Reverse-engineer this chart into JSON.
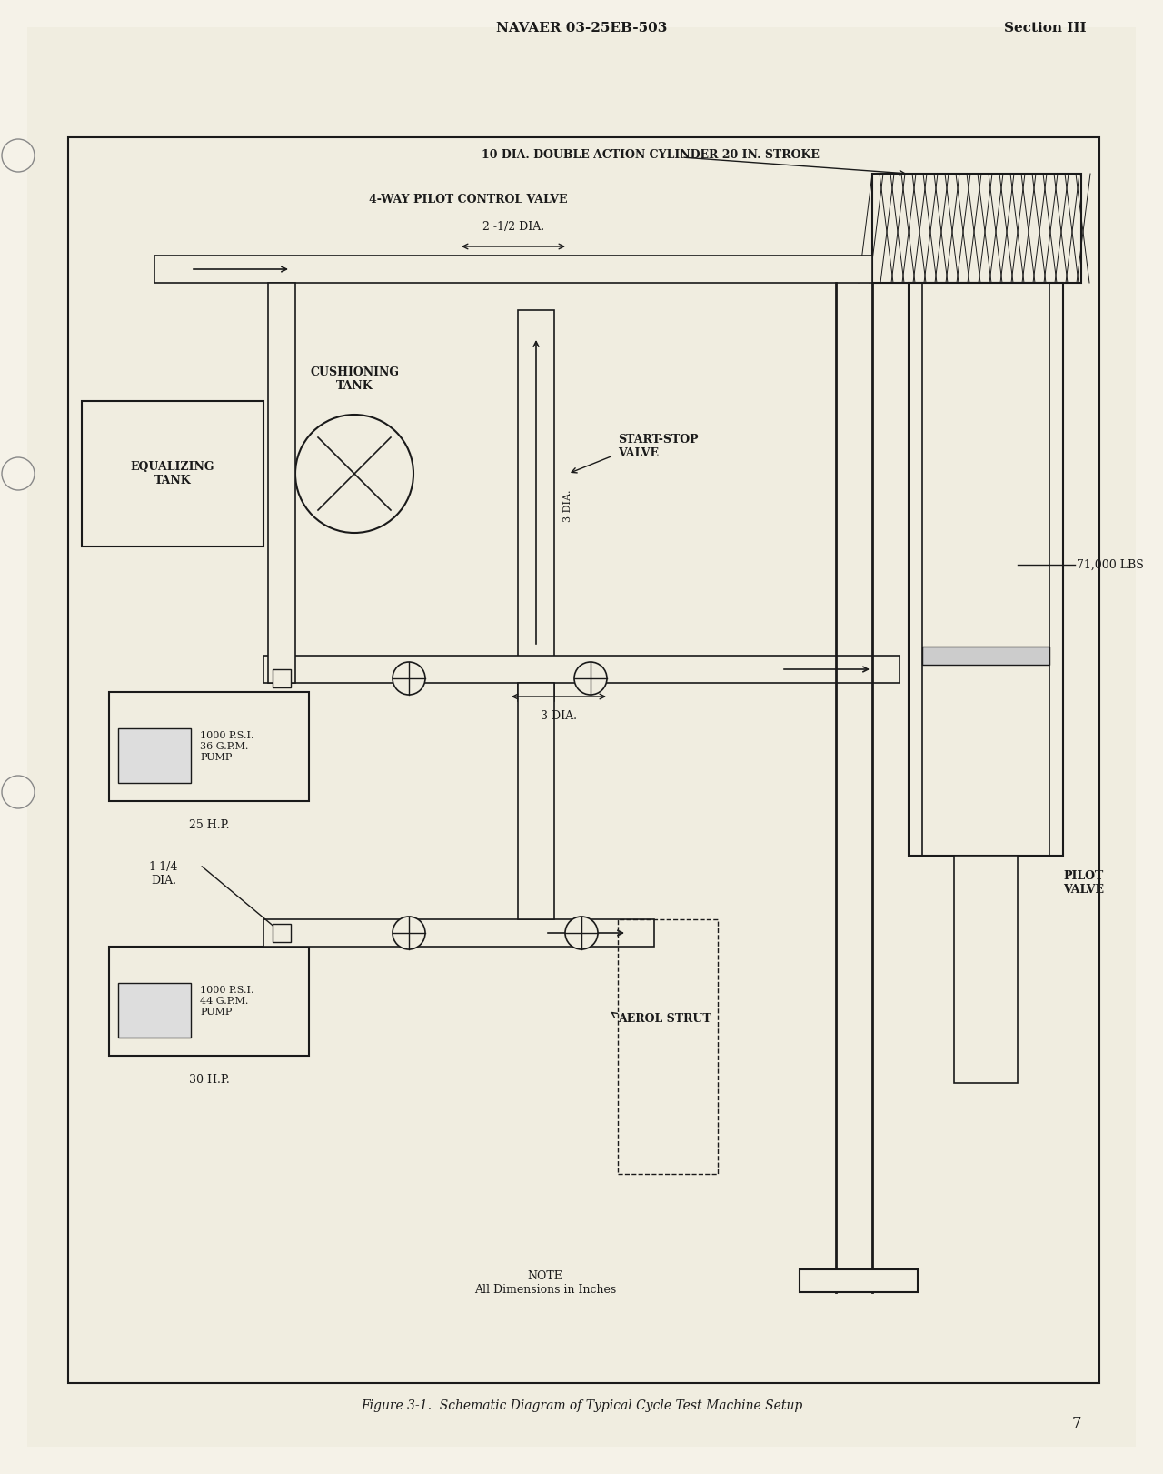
{
  "bg_color": "#f5f2e8",
  "page_color": "#f0ede0",
  "border_color": "#222222",
  "text_color": "#1a1a1a",
  "header_left": "NAVAER 03-25EB-503",
  "header_right": "Section III",
  "footer_caption": "Figure 3-1.  Schematic Diagram of Typical Cycle Test Machine Setup",
  "page_number": "7",
  "diagram_title_top": "10 DIA. DOUBLE ACTION CYLINDER 20 IN. STROKE",
  "labels": {
    "4way": "4-WAY PILOT CONTROL VALVE",
    "dia_2_5": "2 -1/2 DIA.",
    "cushioning": "CUSHIONING\nTANK",
    "equalizing": "EQUALIZING\nTANK",
    "3dia_vert": "3 DIA.",
    "start_stop": "START-STOP\nVALVE",
    "load": "71,000 LBS",
    "3dia_horiz": "3 DIA.",
    "pump1": "1000 P.S.I.\n36 G.P.M.\nPUMP",
    "hp25": "25 H.P.",
    "aerol": "AEROL STRUT",
    "pilot_valve": "PILOT\nVALVE",
    "pump2": "1000 P.S.I.\n44 G.P.M.\nPUMP",
    "hp30": "30 H.P.",
    "dia_1_25": "1-1/4\nDIA.",
    "note": "NOTE\nAll Dimensions in Inches"
  }
}
